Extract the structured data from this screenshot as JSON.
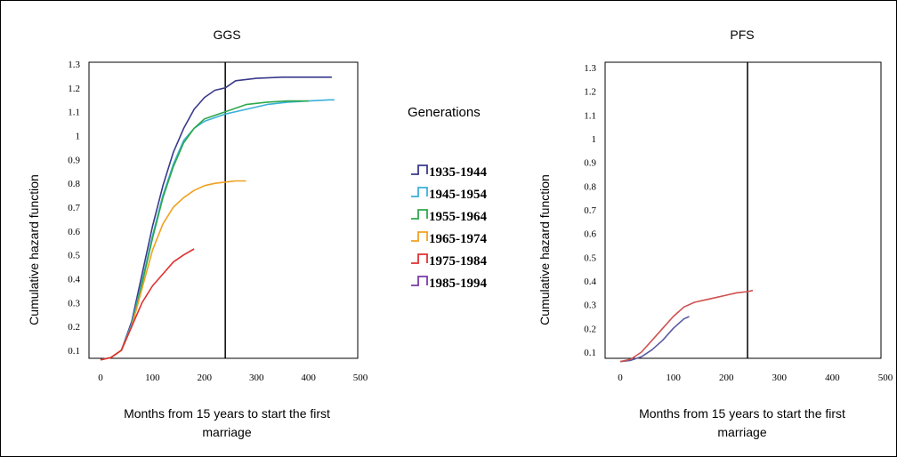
{
  "chart_data": [
    {
      "type": "line",
      "title": "GGS",
      "xlabel": "Months from 15 years to start the first marriage",
      "ylabel": "Cumulative hazard function",
      "xlim": [
        0,
        500
      ],
      "ylim": [
        0.05,
        1.3
      ],
      "x_ticks": [
        "0",
        "100",
        "200",
        "300",
        "400",
        "500"
      ],
      "y_ticks": [
        "0.1",
        "0.2",
        "0.3",
        "0.4",
        "0.5",
        "0.6",
        "0.7",
        "0.8",
        "0.9",
        "1",
        "1.1",
        "1.2",
        "1.3"
      ],
      "reference_line_x": 240,
      "grid": false,
      "series": [
        {
          "name": "1935-1944",
          "color": "#3a3a8c",
          "x": [
            0,
            20,
            40,
            60,
            80,
            100,
            120,
            140,
            160,
            180,
            200,
            220,
            240,
            260,
            300,
            350,
            400,
            445
          ],
          "y": [
            0.06,
            0.07,
            0.1,
            0.22,
            0.42,
            0.62,
            0.79,
            0.93,
            1.03,
            1.11,
            1.16,
            1.19,
            1.2,
            1.23,
            1.24,
            1.245,
            1.245,
            1.245
          ]
        },
        {
          "name": "1945-1954",
          "color": "#3ab0d8",
          "x": [
            0,
            20,
            40,
            60,
            80,
            100,
            120,
            140,
            160,
            180,
            200,
            240,
            280,
            320,
            360,
            400,
            440,
            450
          ],
          "y": [
            0.06,
            0.07,
            0.1,
            0.21,
            0.39,
            0.58,
            0.75,
            0.88,
            0.98,
            1.03,
            1.06,
            1.09,
            1.11,
            1.13,
            1.14,
            1.145,
            1.15,
            1.15
          ]
        },
        {
          "name": "1955-1964",
          "color": "#2ea84a",
          "x": [
            0,
            20,
            40,
            60,
            80,
            100,
            120,
            140,
            160,
            180,
            200,
            240,
            280,
            320,
            360,
            400
          ],
          "y": [
            0.06,
            0.07,
            0.1,
            0.2,
            0.38,
            0.57,
            0.74,
            0.87,
            0.97,
            1.03,
            1.07,
            1.1,
            1.13,
            1.14,
            1.145,
            1.145
          ]
        },
        {
          "name": "1965-1974",
          "color": "#f0a020",
          "x": [
            0,
            20,
            40,
            60,
            80,
            100,
            120,
            140,
            160,
            180,
            200,
            220,
            240,
            260,
            280
          ],
          "y": [
            0.06,
            0.07,
            0.1,
            0.2,
            0.36,
            0.52,
            0.63,
            0.7,
            0.74,
            0.77,
            0.79,
            0.8,
            0.805,
            0.81,
            0.81
          ]
        },
        {
          "name": "1975-1984",
          "color": "#e03030",
          "x": [
            0,
            20,
            40,
            60,
            80,
            100,
            120,
            140,
            160,
            180
          ],
          "y": [
            0.06,
            0.07,
            0.1,
            0.2,
            0.3,
            0.37,
            0.42,
            0.47,
            0.5,
            0.525
          ]
        },
        {
          "name": "1985-1994",
          "color": "#7a3aa8",
          "x": [],
          "y": []
        }
      ]
    },
    {
      "type": "line",
      "title": "PFS",
      "xlabel": "Months from 15 years to start the first marriage",
      "ylabel": "Cumulative hazard function",
      "xlim": [
        0,
        500
      ],
      "ylim": [
        0.05,
        1.3
      ],
      "x_ticks": [
        "0",
        "100",
        "200",
        "300",
        "400",
        "500"
      ],
      "y_ticks": [
        "0.1",
        "0.2",
        "0.3",
        "0.4",
        "0.5",
        "0.6",
        "0.7",
        "0.8",
        "0.9",
        "1",
        "1.1",
        "1.2",
        "1.3"
      ],
      "reference_line_x": 240,
      "grid": false,
      "series": [
        {
          "name": "1935-1944",
          "color": "#5a5aa0",
          "x": [
            0,
            20,
            40,
            60,
            80,
            100,
            120,
            130
          ],
          "y": [
            0.06,
            0.065,
            0.08,
            0.11,
            0.15,
            0.2,
            0.24,
            0.25
          ]
        },
        {
          "name": "1955-1964",
          "color": "#d05050",
          "x": [
            0,
            20,
            40,
            60,
            80,
            100,
            120,
            140,
            160,
            180,
            200,
            220,
            240,
            250
          ],
          "y": [
            0.06,
            0.07,
            0.1,
            0.15,
            0.2,
            0.25,
            0.29,
            0.31,
            0.32,
            0.33,
            0.34,
            0.35,
            0.355,
            0.36
          ]
        }
      ]
    }
  ],
  "legend": {
    "title": "Generations",
    "items": [
      {
        "label": "1935-1944",
        "color": "#3a3a8c"
      },
      {
        "label": "1945-1954",
        "color": "#3ab0d8"
      },
      {
        "label": "1955-1964",
        "color": "#2ea84a"
      },
      {
        "label": "1965-1974",
        "color": "#f0a020"
      },
      {
        "label": "1975-1984",
        "color": "#e03030"
      },
      {
        "label": "1985-1994",
        "color": "#7a3aa8"
      }
    ]
  }
}
